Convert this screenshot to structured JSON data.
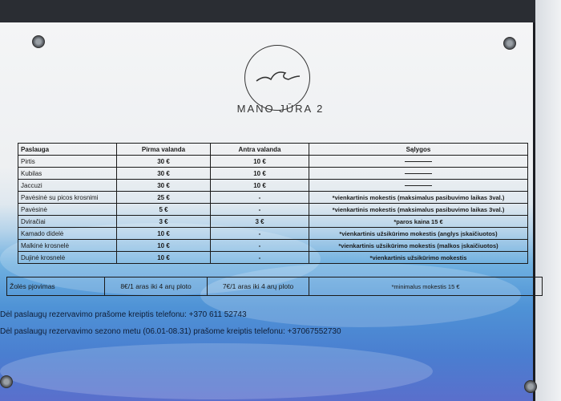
{
  "brand": {
    "name": "MANO JŪRA 2"
  },
  "table": {
    "headers": [
      "Paslauga",
      "Pirma valanda",
      "Antra valanda",
      "Sąlygos"
    ],
    "rows": [
      {
        "service": "Pirtis",
        "first": "30 €",
        "second": "10 €",
        "conditions": ""
      },
      {
        "service": "Kubilas",
        "first": "30 €",
        "second": "10 €",
        "conditions": ""
      },
      {
        "service": "Jaccuzi",
        "first": "30 €",
        "second": "10 €",
        "conditions": ""
      },
      {
        "service": "Pavėsinė su picos krosnimi",
        "first": "25 €",
        "second": "-",
        "conditions": "*vienkartinis mokestis (maksimalus pasibuvimo laikas 3val.)"
      },
      {
        "service": "Pavėsinė",
        "first": "5 €",
        "second": "-",
        "conditions": "*vienkartinis mokestis (maksimalus pasibuvimo laikas 3val.)"
      },
      {
        "service": "Dviračiai",
        "first": "3 €",
        "second": "3 €",
        "conditions": "*paros kaina 15 €"
      },
      {
        "service": "Kamado didelė",
        "first": "10 €",
        "second": "-",
        "conditions": "*vienkartinis užsikūrimo mokestis (anglys įskaičiuotos)"
      },
      {
        "service": "Malkinė krosnelė",
        "first": "10 €",
        "second": "-",
        "conditions": "*vienkartinis užsikūrimo mokestis (malkos įskaičiuotos)"
      },
      {
        "service": "Dujinė krosnelė",
        "first": "10 €",
        "second": "-",
        "conditions": "*vienkartinis užsikūrimo mokestis"
      }
    ]
  },
  "mowing": {
    "service": "Žolės pjovimas",
    "first": "8€/1 aras iki 4 arų ploto",
    "second": "7€/1 aras iki 4 arų ploto",
    "conditions": "*minimalus mokestis 15 €"
  },
  "contacts": [
    "Dėl paslaugų rezervavimo prašome kreiptis telefonu: +370 611 52743",
    "Dėl paslaugų rezervavimo sezono metu (06.01-08.31) prašome kreiptis telefonu: +37067552730"
  ]
}
